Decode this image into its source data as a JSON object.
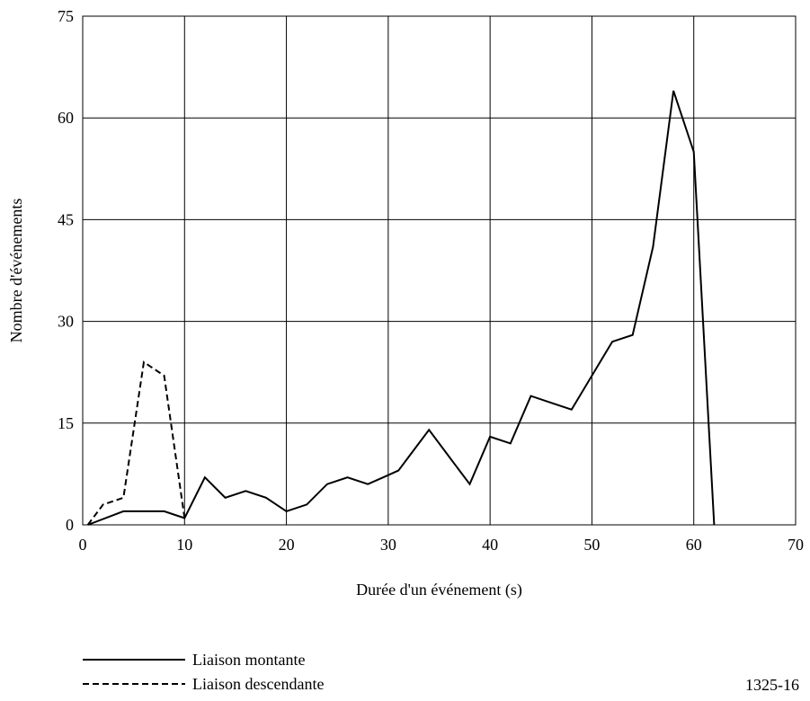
{
  "chart_data": {
    "type": "line",
    "title": "",
    "xlabel": "Durée d'un événement (s)",
    "ylabel": "Nombre d'événements",
    "xlim": [
      0,
      70
    ],
    "ylim": [
      0,
      75
    ],
    "xticks": [
      0,
      10,
      20,
      30,
      40,
      50,
      60,
      70
    ],
    "yticks": [
      0,
      15,
      30,
      45,
      60,
      75
    ],
    "grid": true,
    "legend_position": "bottom-left",
    "series": [
      {
        "name": "Liaison montante",
        "style": "solid",
        "color": "#000000",
        "x": [
          0.5,
          4,
          6,
          8,
          10,
          12,
          14,
          16,
          18,
          20,
          22,
          24,
          26,
          28,
          29.5,
          31,
          32,
          34,
          36,
          38,
          40,
          42,
          44,
          46,
          48,
          50,
          52,
          54,
          56,
          58,
          60,
          62
        ],
        "y": [
          0,
          2,
          2,
          2,
          1,
          7,
          4,
          5,
          4,
          2,
          3,
          6,
          7,
          6,
          7,
          8,
          10,
          14,
          10,
          6,
          13,
          12,
          19,
          18,
          17,
          22,
          27,
          28,
          41,
          64,
          55,
          0
        ]
      },
      {
        "name": "Liaison descendante",
        "style": "dashed",
        "color": "#000000",
        "x": [
          0.5,
          2,
          4,
          6,
          8,
          10
        ],
        "y": [
          0,
          3,
          4,
          24,
          22,
          1
        ]
      }
    ]
  },
  "figure_id": "1325-16"
}
